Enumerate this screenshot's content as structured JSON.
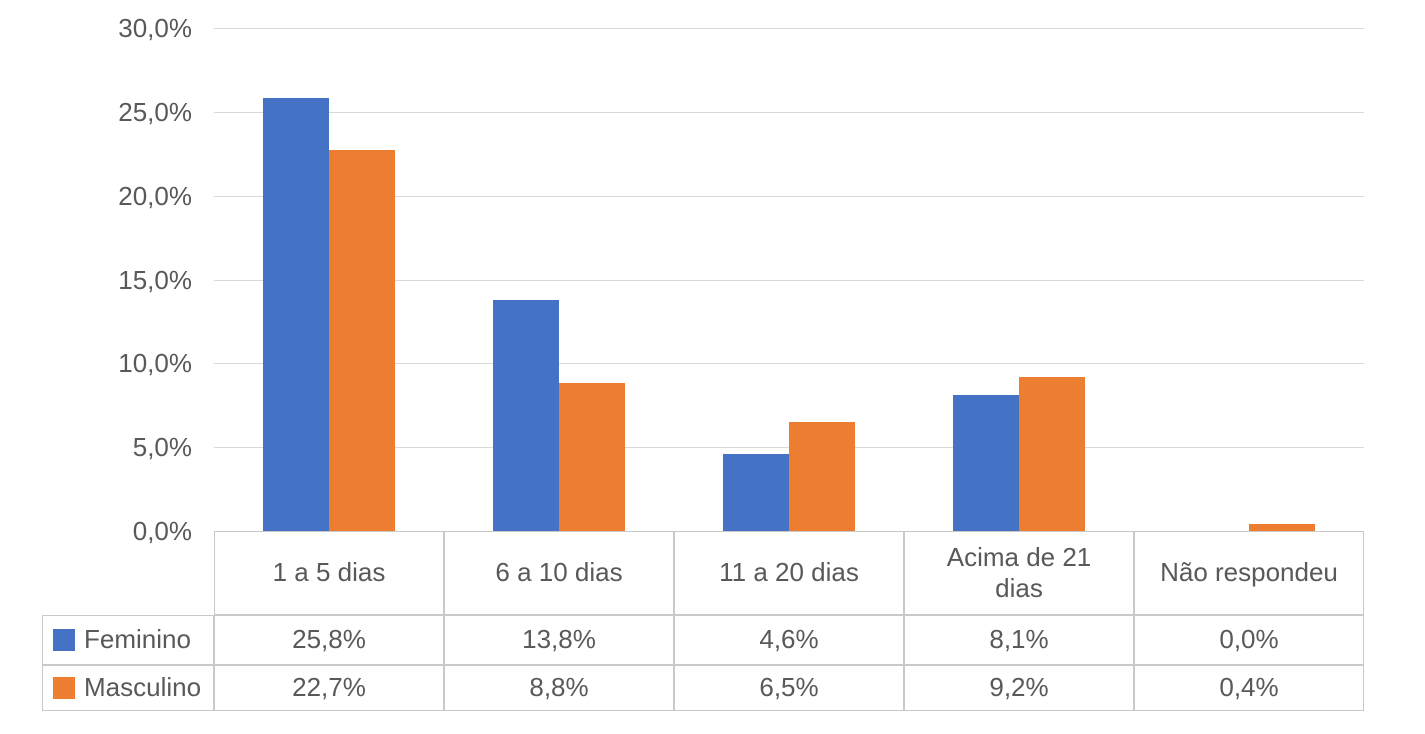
{
  "chart_data": {
    "type": "bar",
    "title": "",
    "categories": [
      "1 a 5 dias",
      "6 a 10 dias",
      "11 a 20 dias",
      "Acima de 21 dias",
      "Não respondeu"
    ],
    "series": [
      {
        "name": "Feminino",
        "color": "#4472C4",
        "values": [
          25.8,
          13.8,
          4.6,
          8.1,
          0.0
        ],
        "display_values": [
          "25,8%",
          "13,8%",
          "4,6%",
          "8,1%",
          "0,0%"
        ]
      },
      {
        "name": "Masculino",
        "color": "#ED7D31",
        "values": [
          22.7,
          8.8,
          6.5,
          9.2,
          0.4
        ],
        "display_values": [
          "22,7%",
          "8,8%",
          "6,5%",
          "9,2%",
          "0,4%"
        ]
      }
    ],
    "y_axis": {
      "min": 0,
      "max": 30,
      "ticks": [
        30,
        25,
        20,
        15,
        10,
        5,
        0
      ],
      "tick_labels": [
        "30,0%",
        "25,0%",
        "20,0%",
        "15,0%",
        "10,0%",
        "5,0%",
        "0,0%"
      ]
    },
    "grid": true,
    "legend_position": "data-table-left",
    "style": {
      "gridline_color": "#D9D9D9",
      "table_border_color": "#C9C9C9",
      "text_color": "#595959",
      "background_color": "#FFFFFF"
    }
  }
}
